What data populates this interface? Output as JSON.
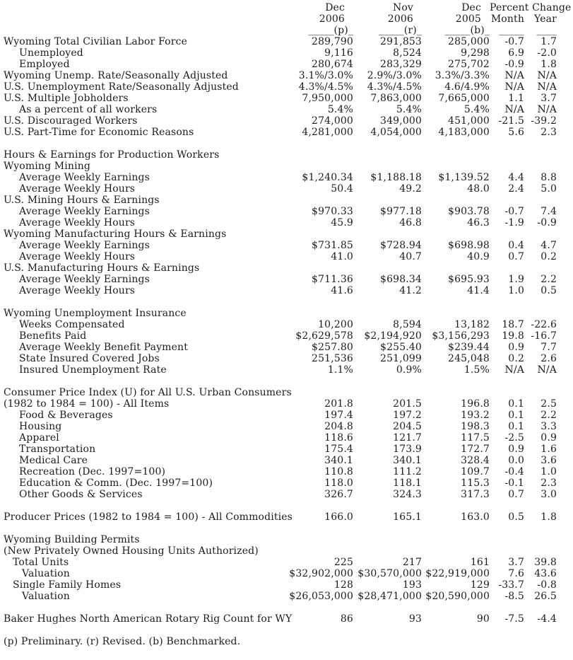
{
  "table": {
    "header": {
      "col1_month": "Dec",
      "col1_year": "2006",
      "col1_rule": "_____(p)_",
      "col2_month": "Nov",
      "col2_year": "2006",
      "col2_rule": "_____(r)_",
      "col3_month": "Dec",
      "col3_year": "2005",
      "col3_rule": "_____(b)_",
      "percent_change_label": "Percent Change",
      "month_label": "Month",
      "year_label": "Year",
      "month_rule": "_____",
      "year_rule": "____"
    },
    "rows": [
      {
        "label": "Wyoming Total Civilian Labor Force",
        "ind": 0,
        "c1": "289,790",
        "c2": "291,853",
        "c3": "285,000",
        "m": "-0.7",
        "y": "1.7"
      },
      {
        "label": "Unemployed",
        "ind": 2,
        "c1": "9,116",
        "c2": "8,524",
        "c3": "9,298",
        "m": "6.9",
        "y": "-2.0"
      },
      {
        "label": "Employed",
        "ind": 2,
        "c1": "280,674",
        "c2": "283,329",
        "c3": "275,702",
        "m": "-0.9",
        "y": "1.8"
      },
      {
        "label": "Wyoming Unemp. Rate/Seasonally Adjusted",
        "ind": 0,
        "c1": "3.1%/3.0%",
        "c2": "2.9%/3.0%",
        "c3": "3.3%/3.3%",
        "m": "N/A",
        "y": "N/A"
      },
      {
        "label": "U.S. Unemployment Rate/Seasonally Adjusted",
        "ind": 0,
        "c1": "4.3%/4.5%",
        "c2": "4.3%/4.5%",
        "c3": "4.6/4.9%",
        "m": "N/A",
        "y": "N/A"
      },
      {
        "label": "U.S. Multiple Jobholders",
        "ind": 0,
        "c1": "7,950,000",
        "c2": "7,863,000",
        "c3": "7,665,000",
        "m": "1.1",
        "y": "3.7"
      },
      {
        "label": "As a percent of all workers",
        "ind": 2,
        "c1": "5.4%",
        "c2": "5.4%",
        "c3": "5.4%",
        "m": "N/A",
        "y": "N/A"
      },
      {
        "label": "U.S. Discouraged Workers",
        "ind": 0,
        "c1": "274,000",
        "c2": "349,000",
        "c3": "451,000",
        "m": "-21.5",
        "y": "-39.2"
      },
      {
        "label": "U.S. Part-Time for Economic Reasons",
        "ind": 0,
        "c1": "4,281,000",
        "c2": "4,054,000",
        "c3": "4,183,000",
        "m": "5.6",
        "y": "2.3"
      },
      {
        "sp": true
      },
      {
        "label": "Hours & Earnings for Production Workers",
        "ind": 0
      },
      {
        "label": "Wyoming Mining",
        "ind": 0
      },
      {
        "label": "Average Weekly Earnings",
        "ind": 2,
        "c1": "$1,240.34",
        "c2": "$1,188.18",
        "c3": "$1,139.52",
        "m": "4.4",
        "y": "8.8"
      },
      {
        "label": "Average Weekly Hours",
        "ind": 2,
        "c1": "50.4",
        "c2": "49.2",
        "c3": "48.0",
        "m": "2.4",
        "y": "5.0"
      },
      {
        "label": "U.S. Mining Hours & Earnings",
        "ind": 0
      },
      {
        "label": "Average Weekly Earnings",
        "ind": 2,
        "c1": "$970.33",
        "c2": "$977.18",
        "c3": "$903.78",
        "m": "-0.7",
        "y": "7.4"
      },
      {
        "label": "Average Weekly Hours",
        "ind": 2,
        "c1": "45.9",
        "c2": "46.8",
        "c3": "46.3",
        "m": "-1.9",
        "y": "-0.9"
      },
      {
        "label": "Wyoming Manufacturing Hours & Earnings",
        "ind": 0
      },
      {
        "label": "Average Weekly Earnings",
        "ind": 2,
        "c1": "$731.85",
        "c2": "$728.94",
        "c3": "$698.98",
        "m": "0.4",
        "y": "4.7"
      },
      {
        "label": "Average Weekly Hours",
        "ind": 2,
        "c1": "41.0",
        "c2": "40.7",
        "c3": "40.9",
        "m": "0.7",
        "y": "0.2"
      },
      {
        "label": "U.S. Manufacturing Hours & Earnings",
        "ind": 0
      },
      {
        "label": "Average Weekly Earnings",
        "ind": 2,
        "c1": "$711.36",
        "c2": "$698.34",
        "c3": "$695.93",
        "m": "1.9",
        "y": "2.2"
      },
      {
        "label": "Average Weekly Hours",
        "ind": 2,
        "c1": "41.6",
        "c2": "41.2",
        "c3": "41.4",
        "m": "1.0",
        "y": "0.5"
      },
      {
        "sp": true
      },
      {
        "label": "Wyoming Unemployment Insurance",
        "ind": 0
      },
      {
        "label": "Weeks Compensated",
        "ind": 2,
        "c1": "10,200",
        "c2": "8,594",
        "c3": "13,182",
        "m": "18.7",
        "y": "-22.6"
      },
      {
        "label": "Benefits Paid",
        "ind": 2,
        "c1": "$2,629,578",
        "c2": "$2,194,920",
        "c3": "$3,156,293",
        "m": "19.8",
        "y": "-16.7"
      },
      {
        "label": "Average Weekly Benefit Payment",
        "ind": 2,
        "c1": "$257.80",
        "c2": "$255.40",
        "c3": "$239.44",
        "m": "0.9",
        "y": "7.7"
      },
      {
        "label": "State Insured Covered Jobs",
        "ind": 2,
        "c1": "251,536",
        "c2": "251,099",
        "c3": "245,048",
        "m": "0.2",
        "y": "2.6"
      },
      {
        "label": "Insured Unemployment Rate",
        "ind": 2,
        "c1": "1.1%",
        "c2": "0.9%",
        "c3": "1.5%",
        "m": "N/A",
        "y": "N/A"
      },
      {
        "sp": true
      },
      {
        "label": "Consumer Price Index (U) for All U.S. Urban Consumers",
        "ind": 0
      },
      {
        "label": "(1982 to 1984 = 100) - All Items",
        "ind": 0,
        "c1": "201.8",
        "c2": "201.5",
        "c3": "196.8",
        "m": "0.1",
        "y": "2.5"
      },
      {
        "label": "Food & Beverages",
        "ind": 2,
        "c1": "197.4",
        "c2": "197.2",
        "c3": "193.2",
        "m": "0.1",
        "y": "2.2"
      },
      {
        "label": "Housing",
        "ind": 2,
        "c1": "204.8",
        "c2": "204.5",
        "c3": "198.3",
        "m": "0.1",
        "y": "3.3"
      },
      {
        "label": "Apparel",
        "ind": 2,
        "c1": "118.6",
        "c2": "121.7",
        "c3": "117.5",
        "m": "-2.5",
        "y": "0.9"
      },
      {
        "label": "Transportation",
        "ind": 2,
        "c1": "175.4",
        "c2": "173.9",
        "c3": "172.7",
        "m": "0.9",
        "y": "1.6"
      },
      {
        "label": "Medical Care",
        "ind": 2,
        "c1": "340.1",
        "c2": "340.1",
        "c3": "328.4",
        "m": "0.0",
        "y": "3.6"
      },
      {
        "label": "Recreation (Dec. 1997=100)",
        "ind": 2,
        "c1": "110.8",
        "c2": "111.2",
        "c3": "109.7",
        "m": "-0.4",
        "y": "1.0"
      },
      {
        "label": "Education & Comm. (Dec. 1997=100)",
        "ind": 2,
        "c1": "118.0",
        "c2": "118.1",
        "c3": "115.3",
        "m": "-0.1",
        "y": "2.3"
      },
      {
        "label": "Other Goods & Services",
        "ind": 2,
        "c1": "326.7",
        "c2": "324.3",
        "c3": "317.3",
        "m": "0.7",
        "y": "3.0"
      },
      {
        "sp": true
      },
      {
        "label": "Producer Prices (1982 to 1984 = 100) - All Commodities",
        "ind": 0,
        "c1": "166.0",
        "c2": "165.1",
        "c3": "163.0",
        "m": "0.5",
        "y": "1.8"
      },
      {
        "sp": true
      },
      {
        "label": "Wyoming Building Permits",
        "ind": 0
      },
      {
        "label": "(New Privately Owned Housing Units Authorized)",
        "ind": 0
      },
      {
        "label": "Total Units",
        "ind": 1,
        "c1": "225",
        "c2": "217",
        "c3": "161",
        "m": "3.7",
        "y": "39.8"
      },
      {
        "label": "Valuation",
        "ind": 3,
        "c1": "$32,902,000",
        "c2": "$30,570,000",
        "c3": "$22,919,000",
        "m": "7.6",
        "y": "43.6"
      },
      {
        "label": "Single Family Homes",
        "ind": 1,
        "c1": "128",
        "c2": "193",
        "c3": "129",
        "m": "-33.7",
        "y": "-0.8"
      },
      {
        "label": "Valuation",
        "ind": 3,
        "c1": "$26,053,000",
        "c2": "$28,471,000",
        "c3": "$20,590,000",
        "m": "-8.5",
        "y": "26.5"
      },
      {
        "sp": true
      },
      {
        "label": "Baker Hughes North American Rotary Rig Count for WY",
        "ind": 0,
        "c1": "86",
        "c2": "93",
        "c3": "90",
        "m": "-7.5",
        "y": "-4.4"
      },
      {
        "sp": true
      }
    ]
  },
  "footnote": {
    "text": "(p) Preliminary. (r) Revised. (b) Benchmarked."
  }
}
